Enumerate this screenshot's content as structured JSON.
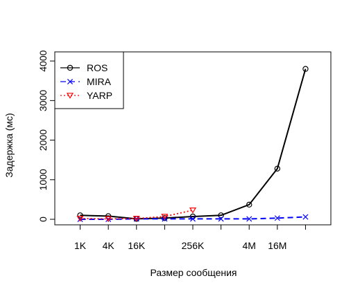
{
  "chart_data": {
    "type": "line",
    "xlabel": "Размер сообщения",
    "ylabel": "Задержка (мс)",
    "x": [
      1,
      2,
      3,
      4,
      5,
      6,
      7,
      8,
      9
    ],
    "x_tick_labels": [
      {
        "x": 1,
        "label": "1K"
      },
      {
        "x": 2,
        "label": "4K"
      },
      {
        "x": 3,
        "label": "16K"
      },
      {
        "x": 5,
        "label": "256K"
      },
      {
        "x": 7,
        "label": "4M"
      },
      {
        "x": 8,
        "label": "16M"
      }
    ],
    "minor_ticks": [
      4,
      6,
      9
    ],
    "y_ticks": [
      0,
      1000,
      2000,
      3000,
      4000
    ],
    "xlim": [
      0.1,
      9.9
    ],
    "ylim": [
      -140,
      4230
    ],
    "legend_position": "top-left",
    "series": [
      {
        "name": "ROS",
        "color": "#000000",
        "dash": "solid",
        "marker": "circle",
        "values": [
          100,
          80,
          10,
          30,
          70,
          100,
          370,
          1280,
          3800
        ]
      },
      {
        "name": "MIRA",
        "color": "#0000ff",
        "dash": "dashed",
        "marker": "x",
        "values": [
          0,
          0,
          10,
          10,
          10,
          10,
          10,
          30,
          60
        ]
      },
      {
        "name": "YARP",
        "color": "#ff0000",
        "dash": "dotted",
        "marker": "v",
        "values": [
          20,
          10,
          20,
          70,
          230,
          null,
          null,
          null,
          null
        ]
      }
    ]
  }
}
